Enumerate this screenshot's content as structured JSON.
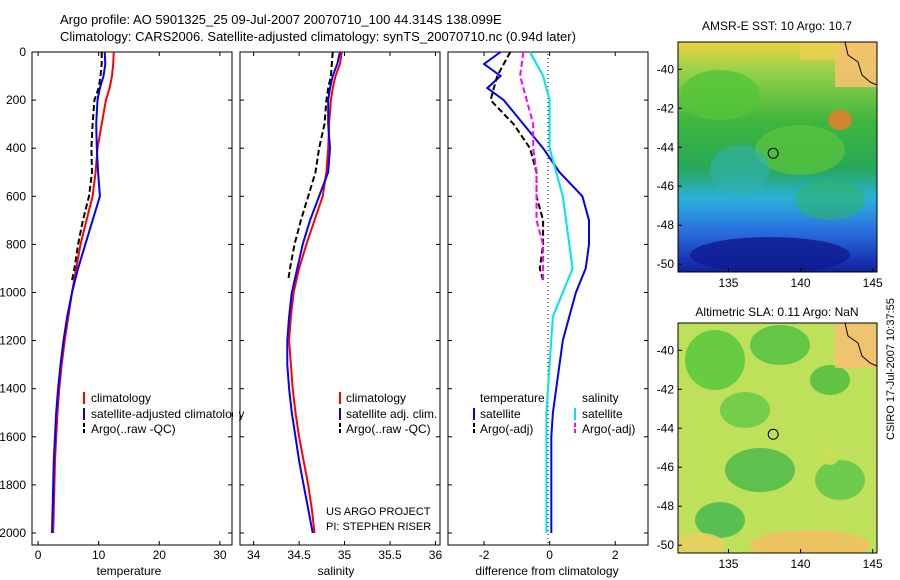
{
  "figure": {
    "title_line1": "Argo profile: AO 5901325_25 09-Jul-2007 20070710_100 44.314S 138.099E",
    "title_line2": "Climatology: CARS2006. Satellite-adjusted climatology: synTS_20070710.nc (0.94d later)",
    "side_stamp": "CSIRO 17-Jul-2007 10:37:55"
  },
  "chart_data": [
    {
      "id": "temperature",
      "type": "line",
      "xlabel": "temperature",
      "ylabel": "",
      "xlim": [
        -1,
        32
      ],
      "ylim": [
        2050,
        0
      ],
      "xticks": [
        0,
        10,
        20,
        30
      ],
      "yticks": [
        0,
        200,
        400,
        600,
        800,
        1000,
        1200,
        1400,
        1600,
        1800,
        2000
      ],
      "legend_position": "lower-right",
      "legend_entries": [
        "climatology",
        "satellite-adjusted climatology",
        "Argo(..raw -QC)"
      ],
      "series": [
        {
          "name": "climatology",
          "color": "#ff0000",
          "style": "solid",
          "points": [
            [
              12.5,
              0
            ],
            [
              12.4,
              50
            ],
            [
              12.2,
              100
            ],
            [
              11.8,
              150
            ],
            [
              11.2,
              200
            ],
            [
              10.5,
              300
            ],
            [
              9.8,
              400
            ],
            [
              9.5,
              500
            ],
            [
              9.0,
              600
            ],
            [
              8.0,
              700
            ],
            [
              7.0,
              800
            ],
            [
              6.3,
              900
            ],
            [
              5.6,
              1000
            ],
            [
              5.0,
              1100
            ],
            [
              4.4,
              1200
            ],
            [
              3.9,
              1300
            ],
            [
              3.5,
              1400
            ],
            [
              3.2,
              1500
            ],
            [
              3.0,
              1600
            ],
            [
              2.8,
              1700
            ],
            [
              2.7,
              1800
            ],
            [
              2.6,
              1900
            ],
            [
              2.5,
              2000
            ]
          ]
        },
        {
          "name": "satellite-adjusted climatology",
          "color": "#0000ff",
          "style": "solid",
          "points": [
            [
              11.0,
              0
            ],
            [
              11.1,
              50
            ],
            [
              10.8,
              100
            ],
            [
              10.2,
              150
            ],
            [
              9.8,
              200
            ],
            [
              9.6,
              300
            ],
            [
              9.7,
              400
            ],
            [
              9.9,
              500
            ],
            [
              10.2,
              600
            ],
            [
              9.0,
              700
            ],
            [
              7.8,
              800
            ],
            [
              6.6,
              900
            ],
            [
              5.6,
              1000
            ],
            [
              4.8,
              1100
            ],
            [
              4.2,
              1200
            ],
            [
              3.7,
              1300
            ],
            [
              3.3,
              1400
            ],
            [
              3.0,
              1500
            ],
            [
              2.8,
              1600
            ],
            [
              2.6,
              1700
            ],
            [
              2.5,
              1800
            ],
            [
              2.4,
              1900
            ],
            [
              2.3,
              2000
            ]
          ]
        },
        {
          "name": "Argo(..raw -QC)",
          "color": "#000000",
          "style": "dash",
          "points": [
            [
              10.5,
              0
            ],
            [
              10.5,
              50
            ],
            [
              10.3,
              100
            ],
            [
              10.0,
              150
            ],
            [
              9.3,
              200
            ],
            [
              9.0,
              300
            ],
            [
              8.8,
              400
            ],
            [
              8.9,
              500
            ],
            [
              8.4,
              600
            ],
            [
              7.4,
              700
            ],
            [
              6.6,
              800
            ],
            [
              6.0,
              900
            ],
            [
              5.6,
              950
            ]
          ]
        }
      ]
    },
    {
      "id": "salinity",
      "type": "line",
      "xlabel": "salinity",
      "ylabel": "",
      "xlim": [
        33.85,
        36.05
      ],
      "ylim": [
        2050,
        0
      ],
      "xticks": [
        34,
        34.5,
        35,
        35.5,
        36
      ],
      "xticklabels": [
        "34",
        "34.5",
        "35",
        "35.5",
        "36"
      ],
      "legend_position": "lower-right",
      "legend_entries": [
        "climatology",
        "satellite adj. clim.",
        "Argo(..raw -QC)"
      ],
      "annotation": [
        "US ARGO PROJECT",
        "PI: STEPHEN RISER"
      ],
      "series": [
        {
          "name": "climatology",
          "color": "#ff0000",
          "style": "solid",
          "points": [
            [
              34.97,
              0
            ],
            [
              34.95,
              50
            ],
            [
              34.9,
              100
            ],
            [
              34.87,
              150
            ],
            [
              34.85,
              200
            ],
            [
              34.83,
              300
            ],
            [
              34.82,
              400
            ],
            [
              34.8,
              500
            ],
            [
              34.76,
              600
            ],
            [
              34.67,
              700
            ],
            [
              34.58,
              800
            ],
            [
              34.5,
              900
            ],
            [
              34.44,
              1000
            ],
            [
              34.41,
              1100
            ],
            [
              34.39,
              1200
            ],
            [
              34.41,
              1300
            ],
            [
              34.43,
              1400
            ],
            [
              34.46,
              1500
            ],
            [
              34.5,
              1600
            ],
            [
              34.55,
              1700
            ],
            [
              34.6,
              1800
            ],
            [
              34.64,
              1900
            ],
            [
              34.67,
              2000
            ]
          ]
        },
        {
          "name": "satellite adj. clim.",
          "color": "#0000ff",
          "style": "solid",
          "points": [
            [
              34.95,
              0
            ],
            [
              34.92,
              50
            ],
            [
              34.87,
              100
            ],
            [
              34.84,
              150
            ],
            [
              34.82,
              200
            ],
            [
              34.82,
              300
            ],
            [
              34.84,
              400
            ],
            [
              34.82,
              500
            ],
            [
              34.72,
              600
            ],
            [
              34.62,
              700
            ],
            [
              34.54,
              800
            ],
            [
              34.48,
              900
            ],
            [
              34.42,
              1000
            ],
            [
              34.39,
              1100
            ],
            [
              34.37,
              1200
            ],
            [
              34.37,
              1300
            ],
            [
              34.39,
              1400
            ],
            [
              34.42,
              1500
            ],
            [
              34.46,
              1600
            ],
            [
              34.5,
              1700
            ],
            [
              34.55,
              1800
            ],
            [
              34.6,
              1900
            ],
            [
              34.65,
              2000
            ]
          ]
        },
        {
          "name": "Argo(..raw -QC)",
          "color": "#000000",
          "style": "dash",
          "points": [
            [
              34.87,
              0
            ],
            [
              34.86,
              50
            ],
            [
              34.85,
              100
            ],
            [
              34.82,
              150
            ],
            [
              34.8,
              200
            ],
            [
              34.78,
              300
            ],
            [
              34.72,
              400
            ],
            [
              34.68,
              500
            ],
            [
              34.6,
              600
            ],
            [
              34.52,
              700
            ],
            [
              34.45,
              800
            ],
            [
              34.4,
              900
            ],
            [
              34.38,
              950
            ]
          ]
        }
      ]
    },
    {
      "id": "difference",
      "type": "line",
      "xlabel": "difference from climatology",
      "ylabel": "",
      "xlim": [
        -3.1,
        3.0
      ],
      "ylim": [
        2050,
        0
      ],
      "xticks": [
        -2,
        0,
        2
      ],
      "legend_position": "lower",
      "legend_entries": [
        "temperature",
        "satellite",
        "Argo(-adj)",
        "salinity",
        "satellite",
        "Argo(-adj)"
      ],
      "series": [
        {
          "name": "temperature satellite",
          "color": "#0000ff",
          "style": "solid",
          "points": [
            [
              -1.5,
              0
            ],
            [
              -2,
              50
            ],
            [
              -1.5,
              100
            ],
            [
              -1.9,
              150
            ],
            [
              -1.4,
              200
            ],
            [
              -0.8,
              300
            ],
            [
              -0.2,
              400
            ],
            [
              0.3,
              500
            ],
            [
              1.0,
              600
            ],
            [
              1.2,
              700
            ],
            [
              1.2,
              800
            ],
            [
              1.1,
              900
            ],
            [
              0.8,
              1000
            ],
            [
              0.6,
              1100
            ],
            [
              0.4,
              1200
            ],
            [
              0.3,
              1300
            ],
            [
              0.2,
              1400
            ],
            [
              0.1,
              1500
            ],
            [
              0.05,
              1600
            ],
            [
              0.05,
              1800
            ],
            [
              0.05,
              2000
            ]
          ]
        },
        {
          "name": "temperature Argo(-adj)",
          "color": "#000000",
          "style": "dash",
          "points": [
            [
              -1.2,
              0
            ],
            [
              -1.6,
              100
            ],
            [
              -1.8,
              200
            ],
            [
              -1.1,
              300
            ],
            [
              -0.6,
              400
            ],
            [
              -0.4,
              500
            ],
            [
              -0.4,
              600
            ],
            [
              -0.2,
              700
            ],
            [
              -0.2,
              800
            ],
            [
              -0.3,
              900
            ],
            [
              -0.2,
              950
            ]
          ]
        },
        {
          "name": "salinity satellite",
          "color": "#00e5e5",
          "style": "solid",
          "points": [
            [
              -0.6,
              0
            ],
            [
              -0.4,
              50
            ],
            [
              -0.2,
              100
            ],
            [
              0.0,
              200
            ],
            [
              0.0,
              400
            ],
            [
              0.4,
              600
            ],
            [
              0.6,
              800
            ],
            [
              0.7,
              900
            ],
            [
              0.4,
              1000
            ],
            [
              0.1,
              1100
            ],
            [
              0.0,
              1300
            ],
            [
              -0.1,
              1500
            ],
            [
              -0.1,
              2000
            ]
          ]
        },
        {
          "name": "salinity Argo(-adj)",
          "color": "#ff00ff",
          "style": "dash",
          "points": [
            [
              -0.8,
              0
            ],
            [
              -0.9,
              100
            ],
            [
              -0.7,
              200
            ],
            [
              -0.5,
              300
            ],
            [
              -0.5,
              400
            ],
            [
              -0.4,
              500
            ],
            [
              -0.4,
              600
            ],
            [
              -0.4,
              700
            ],
            [
              -0.2,
              800
            ],
            [
              -0.2,
              900
            ],
            [
              -0.2,
              950
            ]
          ]
        }
      ]
    },
    {
      "id": "amsre_sst_map",
      "type": "heatmap",
      "title": "AMSR-E SST: 10 Argo: 10.7",
      "xlim": [
        131.5,
        145.3
      ],
      "ylim": [
        -50.4,
        -38.6
      ],
      "xticks": [
        135,
        140,
        145
      ],
      "yticks": [
        -40,
        -42,
        -44,
        -46,
        -48,
        -50
      ],
      "marker": [
        138.1,
        -44.31
      ]
    },
    {
      "id": "altimetric_sla_map",
      "type": "heatmap",
      "title": "Altimetric SLA: 0.11 Argo: NaN",
      "xlim": [
        131.5,
        145.3
      ],
      "ylim": [
        -50.4,
        -38.6
      ],
      "xticks": [
        135,
        140,
        145
      ],
      "yticks": [
        -40,
        -42,
        -44,
        -46,
        -48,
        -50
      ],
      "marker": [
        138.1,
        -44.31
      ]
    }
  ]
}
